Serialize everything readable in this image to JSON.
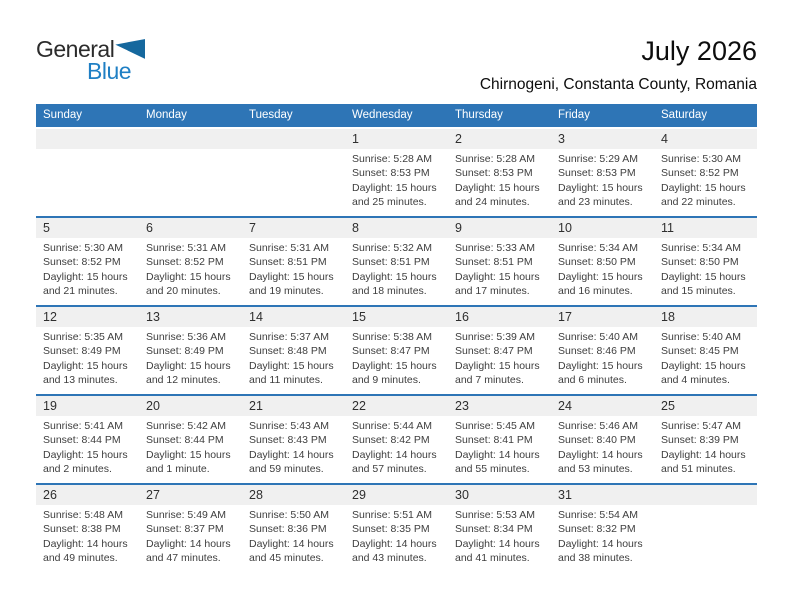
{
  "logo": {
    "word_general": "General",
    "word_blue": "Blue",
    "triangle_icon": "blue-triangle"
  },
  "title": "July 2026",
  "subtitle": "Chirnogeni, Constanta County, Romania",
  "weekday_headers": [
    "Sunday",
    "Monday",
    "Tuesday",
    "Wednesday",
    "Thursday",
    "Friday",
    "Saturday"
  ],
  "colors": {
    "header_bar_blue": "#2e75b6",
    "week_separator_blue": "#2e75b6",
    "day_band_gray": "#f0f0f0",
    "logo_text_blue": "#1f7fc4",
    "logo_triangle_blue": "#15689e",
    "detail_text": "#3e3e3e"
  },
  "weeks": [
    [
      null,
      null,
      null,
      {
        "day": "1",
        "sunrise": "Sunrise: 5:28 AM",
        "sunset": "Sunset: 8:53 PM",
        "daylight": "Daylight: 15 hours and 25 minutes."
      },
      {
        "day": "2",
        "sunrise": "Sunrise: 5:28 AM",
        "sunset": "Sunset: 8:53 PM",
        "daylight": "Daylight: 15 hours and 24 minutes."
      },
      {
        "day": "3",
        "sunrise": "Sunrise: 5:29 AM",
        "sunset": "Sunset: 8:53 PM",
        "daylight": "Daylight: 15 hours and 23 minutes."
      },
      {
        "day": "4",
        "sunrise": "Sunrise: 5:30 AM",
        "sunset": "Sunset: 8:52 PM",
        "daylight": "Daylight: 15 hours and 22 minutes."
      }
    ],
    [
      {
        "day": "5",
        "sunrise": "Sunrise: 5:30 AM",
        "sunset": "Sunset: 8:52 PM",
        "daylight": "Daylight: 15 hours and 21 minutes."
      },
      {
        "day": "6",
        "sunrise": "Sunrise: 5:31 AM",
        "sunset": "Sunset: 8:52 PM",
        "daylight": "Daylight: 15 hours and 20 minutes."
      },
      {
        "day": "7",
        "sunrise": "Sunrise: 5:31 AM",
        "sunset": "Sunset: 8:51 PM",
        "daylight": "Daylight: 15 hours and 19 minutes."
      },
      {
        "day": "8",
        "sunrise": "Sunrise: 5:32 AM",
        "sunset": "Sunset: 8:51 PM",
        "daylight": "Daylight: 15 hours and 18 minutes."
      },
      {
        "day": "9",
        "sunrise": "Sunrise: 5:33 AM",
        "sunset": "Sunset: 8:51 PM",
        "daylight": "Daylight: 15 hours and 17 minutes."
      },
      {
        "day": "10",
        "sunrise": "Sunrise: 5:34 AM",
        "sunset": "Sunset: 8:50 PM",
        "daylight": "Daylight: 15 hours and 16 minutes."
      },
      {
        "day": "11",
        "sunrise": "Sunrise: 5:34 AM",
        "sunset": "Sunset: 8:50 PM",
        "daylight": "Daylight: 15 hours and 15 minutes."
      }
    ],
    [
      {
        "day": "12",
        "sunrise": "Sunrise: 5:35 AM",
        "sunset": "Sunset: 8:49 PM",
        "daylight": "Daylight: 15 hours and 13 minutes."
      },
      {
        "day": "13",
        "sunrise": "Sunrise: 5:36 AM",
        "sunset": "Sunset: 8:49 PM",
        "daylight": "Daylight: 15 hours and 12 minutes."
      },
      {
        "day": "14",
        "sunrise": "Sunrise: 5:37 AM",
        "sunset": "Sunset: 8:48 PM",
        "daylight": "Daylight: 15 hours and 11 minutes."
      },
      {
        "day": "15",
        "sunrise": "Sunrise: 5:38 AM",
        "sunset": "Sunset: 8:47 PM",
        "daylight": "Daylight: 15 hours and 9 minutes."
      },
      {
        "day": "16",
        "sunrise": "Sunrise: 5:39 AM",
        "sunset": "Sunset: 8:47 PM",
        "daylight": "Daylight: 15 hours and 7 minutes."
      },
      {
        "day": "17",
        "sunrise": "Sunrise: 5:40 AM",
        "sunset": "Sunset: 8:46 PM",
        "daylight": "Daylight: 15 hours and 6 minutes."
      },
      {
        "day": "18",
        "sunrise": "Sunrise: 5:40 AM",
        "sunset": "Sunset: 8:45 PM",
        "daylight": "Daylight: 15 hours and 4 minutes."
      }
    ],
    [
      {
        "day": "19",
        "sunrise": "Sunrise: 5:41 AM",
        "sunset": "Sunset: 8:44 PM",
        "daylight": "Daylight: 15 hours and 2 minutes."
      },
      {
        "day": "20",
        "sunrise": "Sunrise: 5:42 AM",
        "sunset": "Sunset: 8:44 PM",
        "daylight": "Daylight: 15 hours and 1 minute."
      },
      {
        "day": "21",
        "sunrise": "Sunrise: 5:43 AM",
        "sunset": "Sunset: 8:43 PM",
        "daylight": "Daylight: 14 hours and 59 minutes."
      },
      {
        "day": "22",
        "sunrise": "Sunrise: 5:44 AM",
        "sunset": "Sunset: 8:42 PM",
        "daylight": "Daylight: 14 hours and 57 minutes."
      },
      {
        "day": "23",
        "sunrise": "Sunrise: 5:45 AM",
        "sunset": "Sunset: 8:41 PM",
        "daylight": "Daylight: 14 hours and 55 minutes."
      },
      {
        "day": "24",
        "sunrise": "Sunrise: 5:46 AM",
        "sunset": "Sunset: 8:40 PM",
        "daylight": "Daylight: 14 hours and 53 minutes."
      },
      {
        "day": "25",
        "sunrise": "Sunrise: 5:47 AM",
        "sunset": "Sunset: 8:39 PM",
        "daylight": "Daylight: 14 hours and 51 minutes."
      }
    ],
    [
      {
        "day": "26",
        "sunrise": "Sunrise: 5:48 AM",
        "sunset": "Sunset: 8:38 PM",
        "daylight": "Daylight: 14 hours and 49 minutes."
      },
      {
        "day": "27",
        "sunrise": "Sunrise: 5:49 AM",
        "sunset": "Sunset: 8:37 PM",
        "daylight": "Daylight: 14 hours and 47 minutes."
      },
      {
        "day": "28",
        "sunrise": "Sunrise: 5:50 AM",
        "sunset": "Sunset: 8:36 PM",
        "daylight": "Daylight: 14 hours and 45 minutes."
      },
      {
        "day": "29",
        "sunrise": "Sunrise: 5:51 AM",
        "sunset": "Sunset: 8:35 PM",
        "daylight": "Daylight: 14 hours and 43 minutes."
      },
      {
        "day": "30",
        "sunrise": "Sunrise: 5:53 AM",
        "sunset": "Sunset: 8:34 PM",
        "daylight": "Daylight: 14 hours and 41 minutes."
      },
      {
        "day": "31",
        "sunrise": "Sunrise: 5:54 AM",
        "sunset": "Sunset: 8:32 PM",
        "daylight": "Daylight: 14 hours and 38 minutes."
      },
      null
    ]
  ]
}
